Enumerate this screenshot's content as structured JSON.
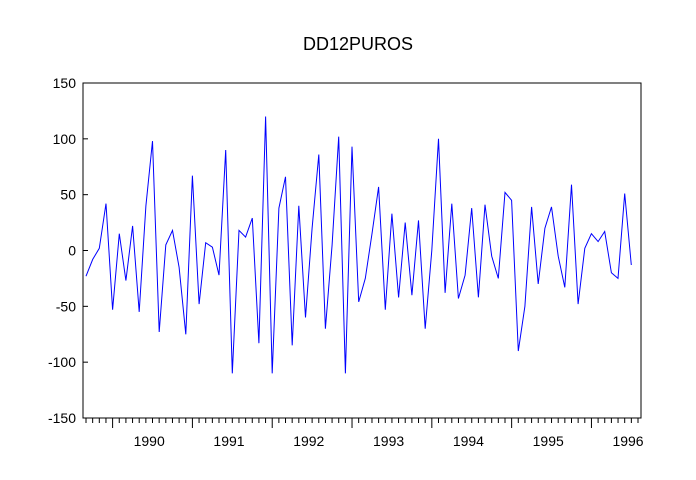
{
  "chart_data": {
    "type": "line",
    "title": "DD12PUROS",
    "xlabel": "",
    "ylabel": "",
    "ylim": [
      -150,
      150
    ],
    "yticks": [
      -150,
      -100,
      -50,
      0,
      50,
      100,
      150
    ],
    "year_labels": [
      "1990",
      "1991",
      "1992",
      "1993",
      "1994",
      "1995",
      "1996"
    ],
    "x_start": "1989-09",
    "x_end": "1996-08",
    "grid": false,
    "legend": "none",
    "line_color": "#0000ff",
    "series": [
      {
        "values": [
          -23,
          -8,
          2,
          42,
          -53,
          15,
          -27,
          22,
          -55,
          40,
          98,
          -73,
          5,
          18,
          -15,
          -75,
          67,
          -48,
          7,
          3,
          -22,
          90,
          -110,
          18,
          12,
          29,
          -83,
          120,
          -110,
          38,
          66,
          -85,
          40,
          -60,
          20,
          86,
          -70,
          5,
          102,
          -110,
          93,
          -46,
          -25,
          15,
          57,
          -53,
          33,
          -42,
          25,
          -40,
          27,
          -70,
          0,
          100,
          -38,
          42,
          -43,
          -22,
          38,
          -42,
          41,
          -5,
          -25,
          52,
          45,
          -90,
          -50,
          39,
          -30,
          20,
          39,
          -5,
          -33,
          59,
          -48,
          2,
          15,
          8,
          17,
          -20,
          -25,
          51,
          -13
        ]
      }
    ]
  }
}
